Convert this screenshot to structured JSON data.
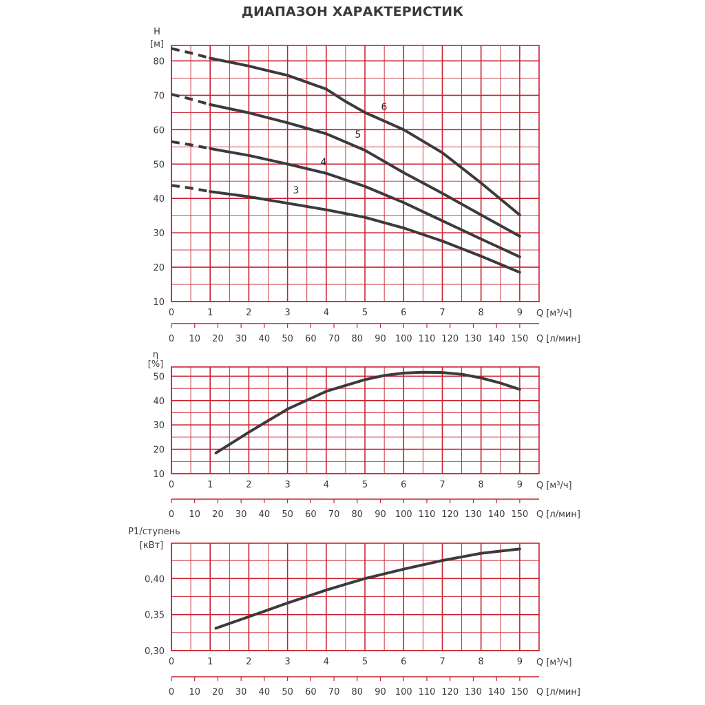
{
  "title": "ДИАПАЗОН ХАРАКТЕРИСТИК",
  "colors": {
    "grid": "#c8202f",
    "curve": "#3b3b3d",
    "text": "#3a3a3a"
  },
  "chart_data": [
    {
      "type": "line",
      "ylabel": "H",
      "yunit": "[м]",
      "xlabel": "Q [м³/ч]",
      "x2label": "Q [л/мин]",
      "xlim": [
        0,
        9.5
      ],
      "ylim": [
        10,
        84.5
      ],
      "xticks": [
        "0",
        "1",
        "2",
        "3",
        "4",
        "5",
        "6",
        "7",
        "8",
        "9"
      ],
      "x2ticks": [
        "0",
        "10",
        "20",
        "30",
        "40",
        "50",
        "60",
        "70",
        "80",
        "90",
        "100",
        "110",
        "120",
        "130",
        "140",
        "150"
      ],
      "yticks": [
        "10",
        "20",
        "30",
        "40",
        "50",
        "60",
        "70",
        "80"
      ],
      "grid": true,
      "series": [
        {
          "name": "3",
          "dashed_until_x": 1.0,
          "x": [
            0,
            0.5,
            1,
            2,
            3,
            4,
            5,
            6,
            7,
            8,
            9
          ],
          "y": [
            43.8,
            43.0,
            42.0,
            40.5,
            38.6,
            36.7,
            34.5,
            31.4,
            27.6,
            23.2,
            18.5
          ]
        },
        {
          "name": "4",
          "dashed_until_x": 1.0,
          "x": [
            0,
            0.5,
            1,
            2,
            3,
            4,
            5,
            6,
            7,
            8,
            9
          ],
          "y": [
            56.5,
            55.6,
            54.5,
            52.5,
            50.0,
            47.3,
            43.5,
            38.8,
            33.5,
            28.2,
            23.0
          ]
        },
        {
          "name": "5",
          "dashed_until_x": 1.0,
          "x": [
            0,
            0.5,
            1,
            2,
            3,
            4,
            5,
            6,
            7,
            8,
            9
          ],
          "y": [
            70.3,
            68.9,
            67.3,
            64.9,
            62.0,
            58.8,
            54.0,
            47.5,
            41.5,
            35.2,
            29.0
          ]
        },
        {
          "name": "6",
          "dashed_until_x": 1.0,
          "x": [
            0,
            0.5,
            1,
            2,
            3,
            4,
            4.5,
            5,
            6,
            7,
            8,
            9
          ],
          "y": [
            83.6,
            82.3,
            80.8,
            78.5,
            75.8,
            71.8,
            68.2,
            65.0,
            60.0,
            53.3,
            44.5,
            35.2
          ]
        }
      ]
    },
    {
      "type": "line",
      "ylabel": "η",
      "yunit": "[%]",
      "xlabel": "Q [м³/ч]",
      "x2label": "Q [л/мин]",
      "xlim": [
        0,
        9.5
      ],
      "ylim": [
        10,
        53.8
      ],
      "xticks": [
        "0",
        "1",
        "2",
        "3",
        "4",
        "5",
        "6",
        "7",
        "8",
        "9"
      ],
      "x2ticks": [
        "0",
        "10",
        "20",
        "30",
        "40",
        "50",
        "60",
        "70",
        "80",
        "90",
        "100",
        "110",
        "120",
        "130",
        "140",
        "150"
      ],
      "yticks": [
        "10",
        "20",
        "30",
        "40",
        "50"
      ],
      "grid": true,
      "series": [
        {
          "x": [
            1.15,
            2,
            3,
            4,
            5,
            5.5,
            6,
            6.5,
            7,
            7.5,
            8,
            8.5,
            9
          ],
          "y": [
            18.5,
            27.0,
            36.5,
            43.8,
            48.6,
            50.3,
            51.3,
            51.6,
            51.5,
            50.8,
            49.3,
            47.2,
            44.6
          ]
        }
      ]
    },
    {
      "type": "line",
      "ylabel": "P1/ступень",
      "yunit": "[кВт]",
      "xlabel": "Q [м³/ч]",
      "x2label": "Q [л/мин]",
      "xlim": [
        0,
        9.5
      ],
      "ylim": [
        0.3,
        0.449
      ],
      "xticks": [
        "0",
        "1",
        "2",
        "3",
        "4",
        "5",
        "6",
        "7",
        "8",
        "9"
      ],
      "x2ticks": [
        "0",
        "10",
        "20",
        "30",
        "40",
        "50",
        "60",
        "70",
        "80",
        "90",
        "100",
        "110",
        "120",
        "130",
        "140",
        "150"
      ],
      "yticks": [
        "0,30",
        "0,35",
        "0,40"
      ],
      "grid": true,
      "series": [
        {
          "x": [
            1.15,
            2,
            3,
            4,
            5,
            6,
            7,
            8,
            9
          ],
          "y": [
            0.331,
            0.347,
            0.366,
            0.384,
            0.4,
            0.413,
            0.425,
            0.435,
            0.441
          ]
        }
      ]
    }
  ]
}
